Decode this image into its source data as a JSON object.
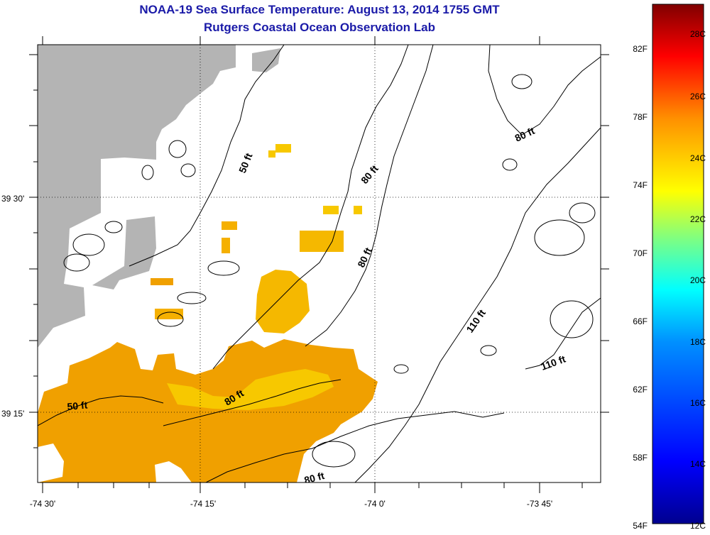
{
  "header": {
    "title": "NOAA-19 Sea Surface Temperature:  August 13, 2014 1755 GMT",
    "subtitle": "Rutgers Coastal Ocean Observation Lab"
  },
  "map": {
    "lon_ticks": [
      "-74 30'",
      "-74 15'",
      "-74 0'",
      "-73 45'"
    ],
    "lat_ticks": [
      "39 30'",
      "39 15'"
    ],
    "colors": {
      "land": "#b4b4b4",
      "sst_warm": "#f0a000",
      "sst_yellow": "#f5c400",
      "sst_orange": "#f09000",
      "contour": "#000000",
      "grid": "#000000"
    },
    "contour_labels": [
      "50 ft",
      "50 ft",
      "80 ft",
      "80 ft",
      "80 ft",
      "80 ft",
      "80 ft",
      "110 ft",
      "110 ft"
    ]
  },
  "colorbar": {
    "fahrenheit_labels": [
      "82F",
      "78F",
      "74F",
      "70F",
      "66F",
      "62F",
      "58F",
      "54F"
    ],
    "celsius_labels": [
      "28C",
      "26C",
      "24C",
      "22C",
      "20C",
      "18C",
      "16C",
      "14C",
      "12C"
    ],
    "colors": [
      "#00008f",
      "#0000ff",
      "#0080ff",
      "#00ffff",
      "#80ff80",
      "#ffff00",
      "#ff8000",
      "#ff0000",
      "#800000"
    ]
  }
}
